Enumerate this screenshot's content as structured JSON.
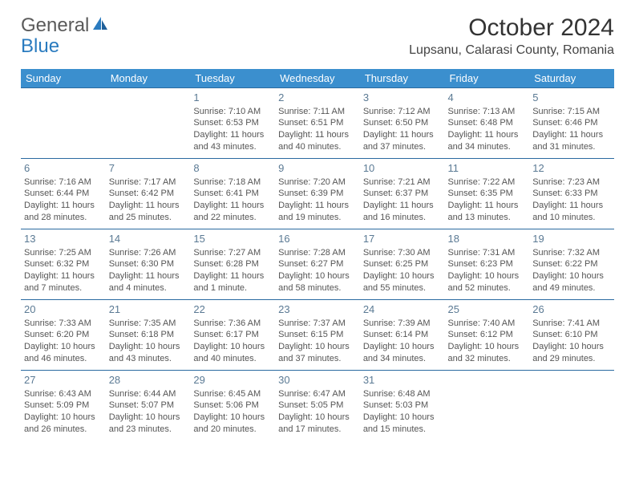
{
  "brand": {
    "general": "General",
    "blue": "Blue"
  },
  "title": "October 2024",
  "location": "Lupsanu, Calarasi County, Romania",
  "colors": {
    "header_bg": "#3b8fce",
    "header_fg": "#ffffff",
    "border": "#2a6aa0",
    "daynum": "#5b7a94",
    "text": "#555555",
    "logo_gray": "#5a5a5a",
    "logo_blue": "#2a7bbf"
  },
  "day_names": [
    "Sunday",
    "Monday",
    "Tuesday",
    "Wednesday",
    "Thursday",
    "Friday",
    "Saturday"
  ],
  "weeks": [
    [
      null,
      null,
      {
        "n": "1",
        "sr": "7:10 AM",
        "ss": "6:53 PM",
        "dl": "11 hours and 43 minutes."
      },
      {
        "n": "2",
        "sr": "7:11 AM",
        "ss": "6:51 PM",
        "dl": "11 hours and 40 minutes."
      },
      {
        "n": "3",
        "sr": "7:12 AM",
        "ss": "6:50 PM",
        "dl": "11 hours and 37 minutes."
      },
      {
        "n": "4",
        "sr": "7:13 AM",
        "ss": "6:48 PM",
        "dl": "11 hours and 34 minutes."
      },
      {
        "n": "5",
        "sr": "7:15 AM",
        "ss": "6:46 PM",
        "dl": "11 hours and 31 minutes."
      }
    ],
    [
      {
        "n": "6",
        "sr": "7:16 AM",
        "ss": "6:44 PM",
        "dl": "11 hours and 28 minutes."
      },
      {
        "n": "7",
        "sr": "7:17 AM",
        "ss": "6:42 PM",
        "dl": "11 hours and 25 minutes."
      },
      {
        "n": "8",
        "sr": "7:18 AM",
        "ss": "6:41 PM",
        "dl": "11 hours and 22 minutes."
      },
      {
        "n": "9",
        "sr": "7:20 AM",
        "ss": "6:39 PM",
        "dl": "11 hours and 19 minutes."
      },
      {
        "n": "10",
        "sr": "7:21 AM",
        "ss": "6:37 PM",
        "dl": "11 hours and 16 minutes."
      },
      {
        "n": "11",
        "sr": "7:22 AM",
        "ss": "6:35 PM",
        "dl": "11 hours and 13 minutes."
      },
      {
        "n": "12",
        "sr": "7:23 AM",
        "ss": "6:33 PM",
        "dl": "11 hours and 10 minutes."
      }
    ],
    [
      {
        "n": "13",
        "sr": "7:25 AM",
        "ss": "6:32 PM",
        "dl": "11 hours and 7 minutes."
      },
      {
        "n": "14",
        "sr": "7:26 AM",
        "ss": "6:30 PM",
        "dl": "11 hours and 4 minutes."
      },
      {
        "n": "15",
        "sr": "7:27 AM",
        "ss": "6:28 PM",
        "dl": "11 hours and 1 minute."
      },
      {
        "n": "16",
        "sr": "7:28 AM",
        "ss": "6:27 PM",
        "dl": "10 hours and 58 minutes."
      },
      {
        "n": "17",
        "sr": "7:30 AM",
        "ss": "6:25 PM",
        "dl": "10 hours and 55 minutes."
      },
      {
        "n": "18",
        "sr": "7:31 AM",
        "ss": "6:23 PM",
        "dl": "10 hours and 52 minutes."
      },
      {
        "n": "19",
        "sr": "7:32 AM",
        "ss": "6:22 PM",
        "dl": "10 hours and 49 minutes."
      }
    ],
    [
      {
        "n": "20",
        "sr": "7:33 AM",
        "ss": "6:20 PM",
        "dl": "10 hours and 46 minutes."
      },
      {
        "n": "21",
        "sr": "7:35 AM",
        "ss": "6:18 PM",
        "dl": "10 hours and 43 minutes."
      },
      {
        "n": "22",
        "sr": "7:36 AM",
        "ss": "6:17 PM",
        "dl": "10 hours and 40 minutes."
      },
      {
        "n": "23",
        "sr": "7:37 AM",
        "ss": "6:15 PM",
        "dl": "10 hours and 37 minutes."
      },
      {
        "n": "24",
        "sr": "7:39 AM",
        "ss": "6:14 PM",
        "dl": "10 hours and 34 minutes."
      },
      {
        "n": "25",
        "sr": "7:40 AM",
        "ss": "6:12 PM",
        "dl": "10 hours and 32 minutes."
      },
      {
        "n": "26",
        "sr": "7:41 AM",
        "ss": "6:10 PM",
        "dl": "10 hours and 29 minutes."
      }
    ],
    [
      {
        "n": "27",
        "sr": "6:43 AM",
        "ss": "5:09 PM",
        "dl": "10 hours and 26 minutes."
      },
      {
        "n": "28",
        "sr": "6:44 AM",
        "ss": "5:07 PM",
        "dl": "10 hours and 23 minutes."
      },
      {
        "n": "29",
        "sr": "6:45 AM",
        "ss": "5:06 PM",
        "dl": "10 hours and 20 minutes."
      },
      {
        "n": "30",
        "sr": "6:47 AM",
        "ss": "5:05 PM",
        "dl": "10 hours and 17 minutes."
      },
      {
        "n": "31",
        "sr": "6:48 AM",
        "ss": "5:03 PM",
        "dl": "10 hours and 15 minutes."
      },
      null,
      null
    ]
  ],
  "labels": {
    "sunrise": "Sunrise: ",
    "sunset": "Sunset: ",
    "daylight": "Daylight: "
  }
}
